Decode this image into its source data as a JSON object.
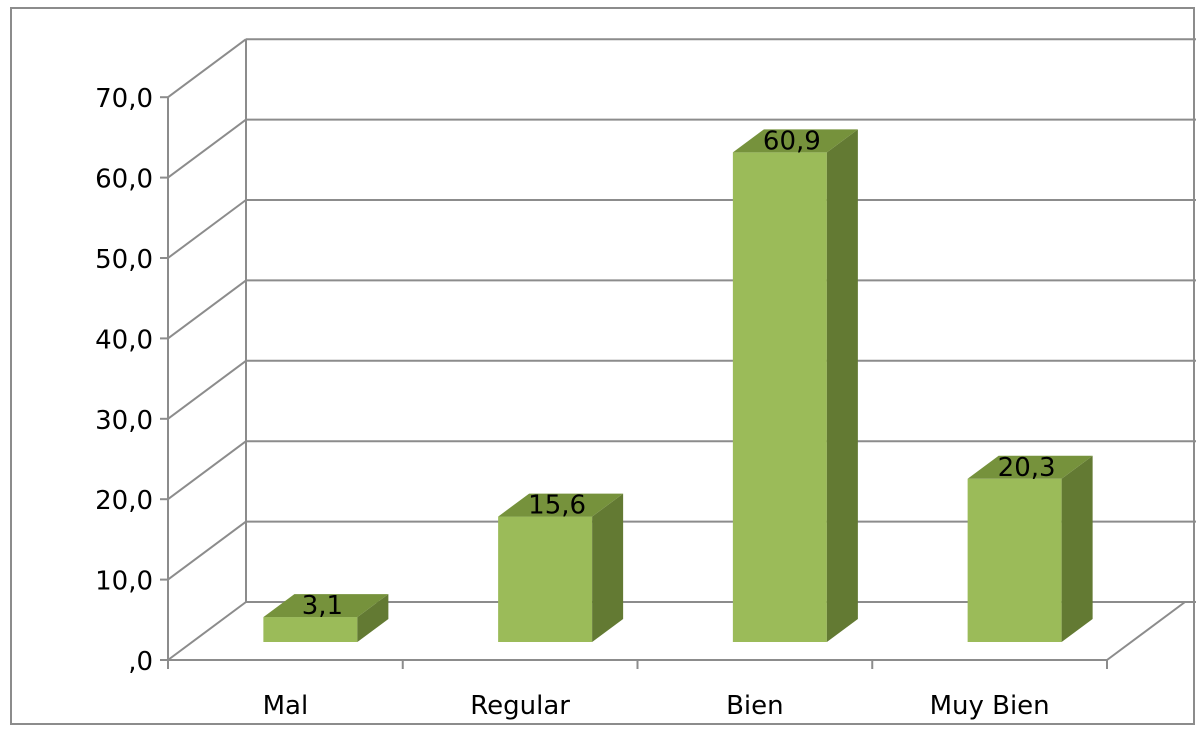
{
  "chart_data": {
    "type": "bar",
    "categories": [
      "Mal",
      "Regular",
      "Bien",
      "Muy Bien"
    ],
    "values": [
      3.1,
      15.6,
      60.9,
      20.3
    ],
    "value_labels": [
      "3,1",
      "15,6",
      "60,9",
      "20,3"
    ],
    "y_ticks": [
      {
        "value": 0,
        "label": ",0"
      },
      {
        "value": 10,
        "label": "10,0"
      },
      {
        "value": 20,
        "label": "20,0"
      },
      {
        "value": 30,
        "label": "30,0"
      },
      {
        "value": 40,
        "label": "40,0"
      },
      {
        "value": 50,
        "label": "50,0"
      },
      {
        "value": 60,
        "label": "60,0"
      },
      {
        "value": 70,
        "label": "70,0"
      }
    ],
    "ylim": [
      0,
      70
    ],
    "grid": true,
    "legend": "none",
    "style": "3d-column",
    "colors": {
      "bar_front": "#9BBB59",
      "bar_top": "#76923C",
      "bar_side": "#637A33",
      "grid": "#8C8C8C",
      "frame_border": "#8C8C8C",
      "text": "#000000"
    }
  }
}
